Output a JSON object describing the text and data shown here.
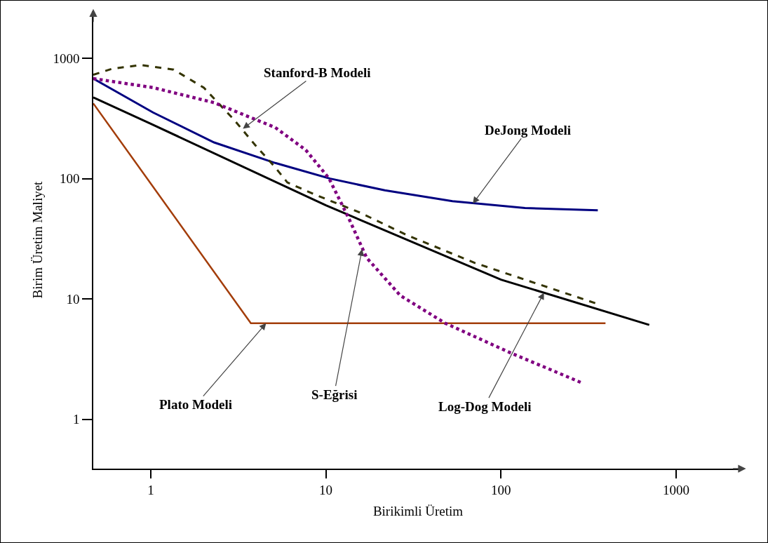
{
  "chart_data": {
    "type": "line",
    "xlabel": "Birikimli Üretim",
    "ylabel": "Birim Üretim Maliyet",
    "log": "xy",
    "grid": false,
    "marker": "none",
    "xlim": [
      0.47,
      2400
    ],
    "ylim": [
      0.39,
      2460
    ],
    "xticks": [
      1,
      10,
      100,
      1000
    ],
    "yticks": [
      1,
      10,
      100,
      1000
    ],
    "series": [
      {
        "color": "#000080",
        "line_style": "solid",
        "x": [
          0.47,
          1.03,
          2.3,
          5.14,
          10.6,
          21.7,
          52.8,
          137,
          357
        ],
        "values": [
          678,
          355,
          200,
          135,
          100,
          80,
          65,
          57,
          54.6
        ]
      },
      {
        "color": "#000000",
        "line_style": "solid",
        "x": [
          0.47,
          1,
          10,
          100,
          702
        ],
        "values": [
          473,
          286,
          60,
          14.5,
          6.1
        ]
      },
      {
        "color": "#a33d0a",
        "line_style": "solid",
        "x": [
          0.47,
          3.73,
          395
        ],
        "values": [
          422,
          6.3,
          6.3
        ]
      },
      {
        "color": "#333300",
        "line_style": "dashed",
        "x": [
          0.47,
          0.6,
          0.88,
          1.35,
          2.01,
          3.0,
          3.94,
          5.14,
          6.03,
          8.8,
          15.6,
          29,
          70.6,
          349
        ],
        "values": [
          729,
          818,
          879,
          806,
          570,
          307,
          191,
          124,
          93,
          73,
          52.4,
          34,
          20,
          9.2
        ]
      },
      {
        "color": "#800080",
        "line_style": "dotted",
        "x": [
          0.47,
          1.03,
          2.3,
          5.14,
          7.68,
          10.4,
          13.5,
          17.1,
          26.6,
          48,
          112,
          292
        ],
        "values": [
          678,
          571,
          428,
          266,
          173,
          101,
          47,
          22,
          10.7,
          6.3,
          3.6,
          2.0
        ]
      }
    ],
    "annotations": [
      {
        "text": "Stanford-B Modeli",
        "x": 3.36,
        "y": 260
      },
      {
        "text": "DeJong Modeli",
        "x": 69,
        "y": 62
      },
      {
        "text": "Plato Modeli",
        "x": 4.56,
        "y": 6.3
      },
      {
        "text": "S-Eğrisi",
        "x": 16.1,
        "y": 26
      },
      {
        "text": "Log-Dog Modeli",
        "x": 176,
        "y": 11.3
      }
    ]
  }
}
